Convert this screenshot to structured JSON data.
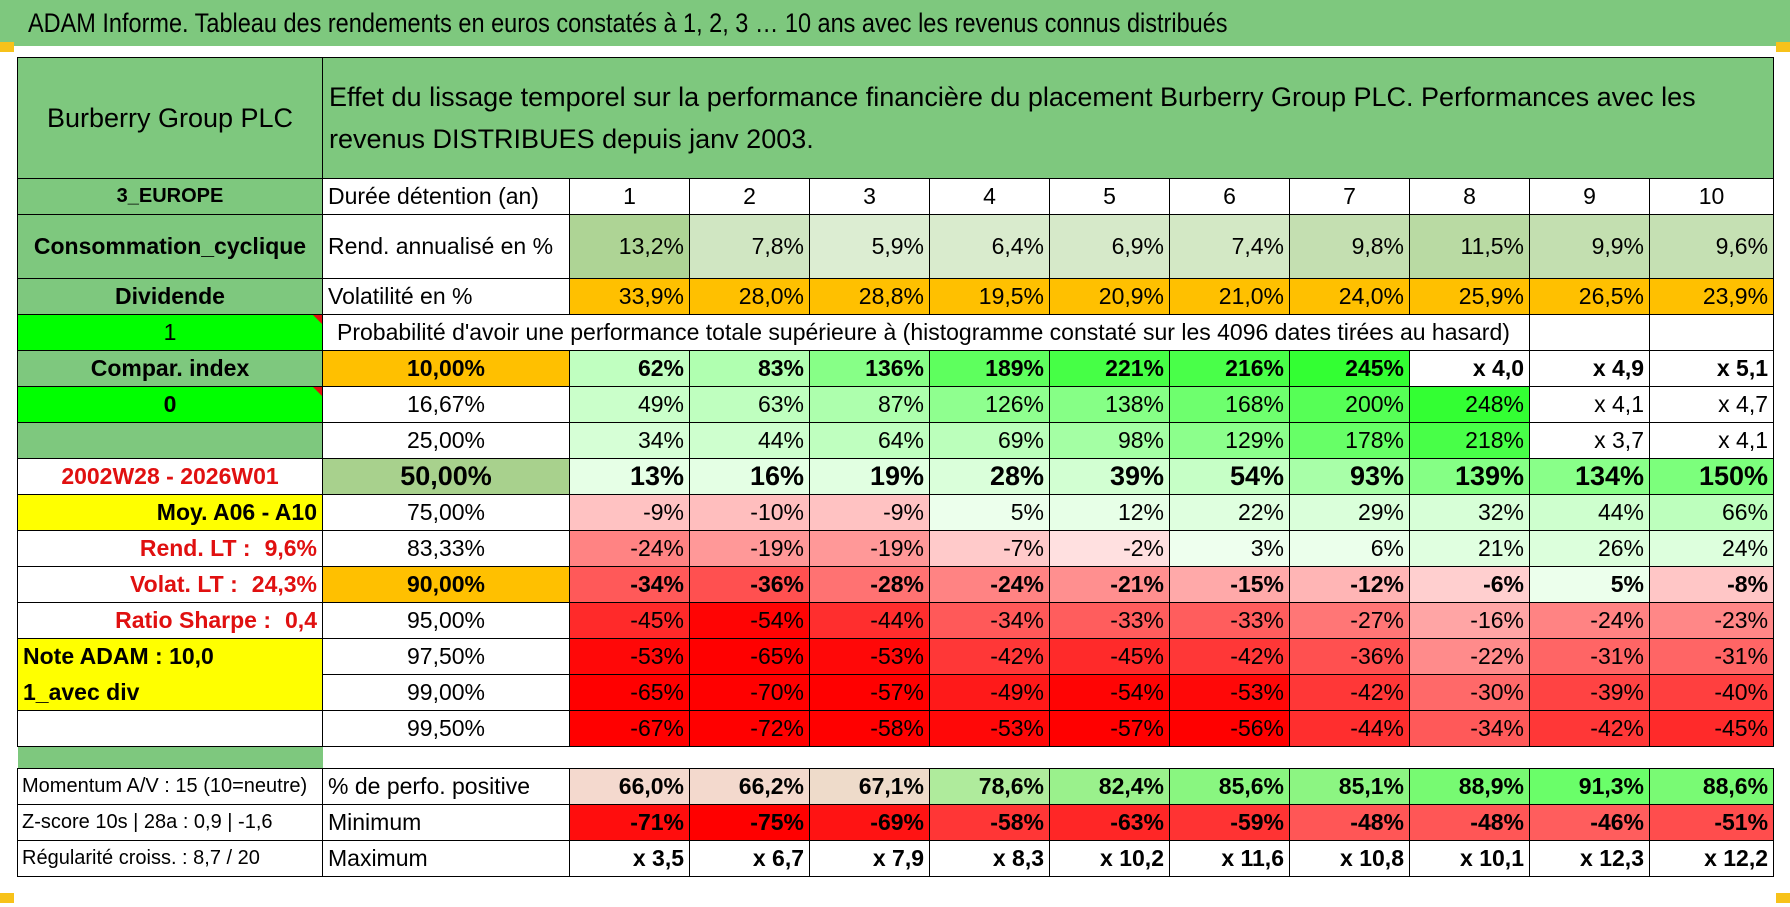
{
  "title": "ADAM Informe. Tableau des rendements en euros constatés à 1, 2, 3 … 10 ans avec les revenus connus distribués",
  "header": {
    "name": "Burberry Group PLC",
    "description": "Effet du lissage temporel sur la performance financière du placement Burberry Group PLC. Performances avec les revenus DISTRIBUES depuis janv 2003."
  },
  "durations": {
    "label": "Durée détention (an)",
    "values": [
      "1",
      "2",
      "3",
      "4",
      "5",
      "6",
      "7",
      "8",
      "9",
      "10"
    ]
  },
  "sidebar": {
    "region": "3_EUROPE",
    "sector": "Consommation_cyclique",
    "type": "Dividende",
    "flag1": "1",
    "compar": "Compar. index",
    "flag0": "0",
    "period": "2002W28 - 2026W01",
    "moy": "Moy. A06 - A10",
    "rend_lt_label": "Rend. LT :",
    "rend_lt_value": "9,6%",
    "volat_lt_label": "Volat. LT :",
    "volat_lt_value": "24,3%",
    "sharpe_label": "Ratio Sharpe :",
    "sharpe_value": "0,4",
    "note": "Note ADAM : 10,0",
    "avec_div": "1_avec div"
  },
  "rend": {
    "label": "Rend. annualisé en %",
    "values": [
      "13,2%",
      "7,8%",
      "5,9%",
      "6,4%",
      "6,9%",
      "7,4%",
      "9,8%",
      "11,5%",
      "9,9%",
      "9,6%"
    ]
  },
  "vol": {
    "label": "Volatilité en %",
    "values": [
      "33,9%",
      "28,0%",
      "28,8%",
      "19,5%",
      "20,9%",
      "21,0%",
      "24,0%",
      "25,9%",
      "26,5%",
      "23,9%"
    ]
  },
  "probability_label": "Probabilité d'avoir une performance totale supérieure à (histogramme constaté sur les 4096 dates tirées au hasard)",
  "quantiles": [
    {
      "pct": "10,00%",
      "values": [
        "62%",
        "83%",
        "136%",
        "189%",
        "221%",
        "216%",
        "245%",
        "x 4,0",
        "x 4,9",
        "x 5,1"
      ]
    },
    {
      "pct": "16,67%",
      "values": [
        "49%",
        "63%",
        "87%",
        "126%",
        "138%",
        "168%",
        "200%",
        "248%",
        "x 4,1",
        "x 4,7"
      ]
    },
    {
      "pct": "25,00%",
      "values": [
        "34%",
        "44%",
        "64%",
        "69%",
        "98%",
        "129%",
        "178%",
        "218%",
        "x 3,7",
        "x 4,1"
      ]
    },
    {
      "pct": "50,00%",
      "values": [
        "13%",
        "16%",
        "19%",
        "28%",
        "39%",
        "54%",
        "93%",
        "139%",
        "134%",
        "150%"
      ]
    },
    {
      "pct": "75,00%",
      "values": [
        "-9%",
        "-10%",
        "-9%",
        "5%",
        "12%",
        "22%",
        "29%",
        "32%",
        "44%",
        "66%"
      ]
    },
    {
      "pct": "83,33%",
      "values": [
        "-24%",
        "-19%",
        "-19%",
        "-7%",
        "-2%",
        "3%",
        "6%",
        "21%",
        "26%",
        "24%"
      ]
    },
    {
      "pct": "90,00%",
      "values": [
        "-34%",
        "-36%",
        "-28%",
        "-24%",
        "-21%",
        "-15%",
        "-12%",
        "-6%",
        "5%",
        "-8%"
      ]
    },
    {
      "pct": "95,00%",
      "values": [
        "-45%",
        "-54%",
        "-44%",
        "-34%",
        "-33%",
        "-33%",
        "-27%",
        "-16%",
        "-24%",
        "-23%"
      ]
    },
    {
      "pct": "97,50%",
      "values": [
        "-53%",
        "-65%",
        "-53%",
        "-42%",
        "-45%",
        "-42%",
        "-36%",
        "-22%",
        "-31%",
        "-31%"
      ]
    },
    {
      "pct": "99,00%",
      "values": [
        "-65%",
        "-70%",
        "-57%",
        "-49%",
        "-54%",
        "-53%",
        "-42%",
        "-30%",
        "-39%",
        "-40%"
      ]
    },
    {
      "pct": "99,50%",
      "values": [
        "-67%",
        "-72%",
        "-58%",
        "-53%",
        "-57%",
        "-56%",
        "-44%",
        "-34%",
        "-42%",
        "-45%"
      ]
    }
  ],
  "footer": {
    "momentum": "Momentum A/V : 15 (10=neutre)",
    "zscore": "Z-score 10s | 28a : 0,9 | -1,6",
    "regularite": "Régularité croiss. : 8,7 / 20",
    "positive": {
      "label": "% de perfo. positive",
      "values": [
        "66,0%",
        "66,2%",
        "67,1%",
        "78,6%",
        "82,4%",
        "85,6%",
        "85,1%",
        "88,9%",
        "91,3%",
        "88,6%"
      ]
    },
    "minimum": {
      "label": "Minimum",
      "values": [
        "-71%",
        "-75%",
        "-69%",
        "-58%",
        "-63%",
        "-59%",
        "-48%",
        "-48%",
        "-46%",
        "-51%"
      ]
    },
    "maximum": {
      "label": "Maximum",
      "values": [
        "x 3,5",
        "x 6,7",
        "x 7,9",
        "x 8,3",
        "x 10,2",
        "x 11,6",
        "x 10,8",
        "x 10,1",
        "x 12,3",
        "x 12,2"
      ]
    }
  },
  "colors": {
    "header_green": "#7ec87e",
    "bright_green": "#00ff00",
    "yellow": "#ffff00",
    "orange": "#ffc000",
    "red_text": "#e01010"
  }
}
